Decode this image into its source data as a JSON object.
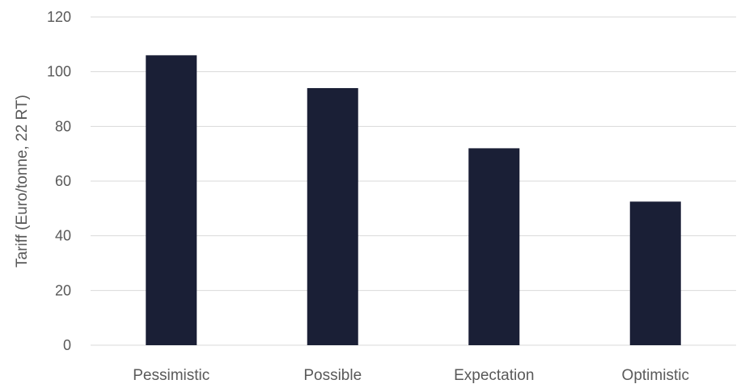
{
  "chart_data": {
    "type": "bar",
    "categories": [
      "Pessimistic",
      "Possible",
      "Expectation",
      "Optimistic"
    ],
    "values": [
      106,
      94,
      72,
      52.5
    ],
    "title": "",
    "xlabel": "",
    "ylabel": "Tariff (Euro/tonne, 22 RT)",
    "ylim": [
      0,
      120
    ],
    "yticks": [
      0,
      20,
      40,
      60,
      80,
      100,
      120
    ],
    "grid": true,
    "legend": "none",
    "bar_color": "#1a1f36",
    "grid_color": "#d9d9d9",
    "text_color": "#595959"
  }
}
